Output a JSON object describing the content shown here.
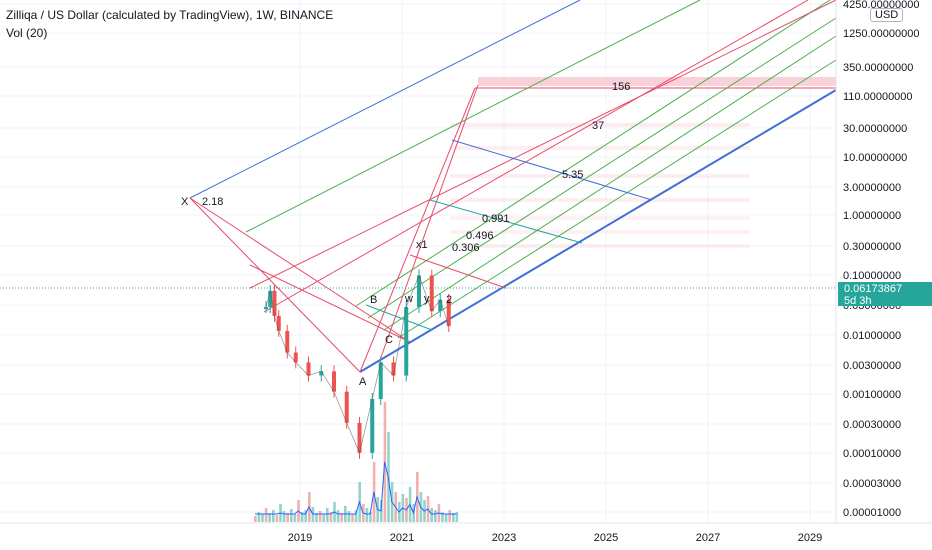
{
  "legend": {
    "title": "Zilliqa / US Dollar (calculated by TradingView), 1W, BINANCE",
    "volume": "Vol (20)"
  },
  "currency": "USD",
  "price_tag": {
    "price": "0.06173867",
    "countdown": "5d 3h"
  },
  "colors": {
    "up": "#26a69a",
    "down": "#ef5350",
    "pitchfork_red": "#e84a6a",
    "pitchfork_green": "#4caf50",
    "pitchfork_blue": "#3f6fd6",
    "fib_band": "#f8c6d0",
    "volume_ma": "#2962ff"
  },
  "chart_data": {
    "type": "line",
    "title": "Zilliqa / US Dollar (calculated by TradingView), 1W, BINANCE",
    "y_scale": "log",
    "y_ticks": [
      "4250.00000000",
      "1250.00000000",
      "350.00000000",
      "110.00000000",
      "30.00000000",
      "10.00000000",
      "3.00000000",
      "1.00000000",
      "0.30000000",
      "0.10000000",
      "0.03000000",
      "0.01000000",
      "0.00300000",
      "0.00100000",
      "0.00030000",
      "0.00010000",
      "0.00003000",
      "0.00001000"
    ],
    "x_ticks": [
      "2019",
      "2021",
      "2023",
      "2025",
      "2027",
      "2029"
    ],
    "last_price": 0.06173867,
    "series": [
      {
        "name": "ZILUSD",
        "points": [
          {
            "x": "2018-05",
            "y": 0.1
          },
          {
            "x": "2018-06",
            "y": 0.15
          },
          {
            "x": "2018-07",
            "y": 0.08
          },
          {
            "x": "2018-08",
            "y": 0.055
          },
          {
            "x": "2018-10",
            "y": 0.032
          },
          {
            "x": "2018-12",
            "y": 0.025
          },
          {
            "x": "2019-03",
            "y": 0.018
          },
          {
            "x": "2019-06",
            "y": 0.02
          },
          {
            "x": "2019-09",
            "y": 0.012
          },
          {
            "x": "2019-12",
            "y": 0.0055
          },
          {
            "x": "2020-03",
            "y": 0.0026
          },
          {
            "x": "2020-06",
            "y": 0.01
          },
          {
            "x": "2020-08",
            "y": 0.025
          },
          {
            "x": "2020-11",
            "y": 0.018
          },
          {
            "x": "2021-02",
            "y": 0.1
          },
          {
            "x": "2021-05",
            "y": 0.22
          },
          {
            "x": "2021-08",
            "y": 0.09
          },
          {
            "x": "2021-10",
            "y": 0.12
          },
          {
            "x": "2021-12",
            "y": 0.062
          }
        ]
      }
    ],
    "fib_labels": [
      "156",
      "37",
      "5.35",
      "0.991",
      "0.496",
      "0.306",
      "2.18"
    ],
    "wave_labels": [
      "X",
      "A",
      "B",
      "C",
      "x1",
      "w",
      "y",
      "2"
    ]
  }
}
